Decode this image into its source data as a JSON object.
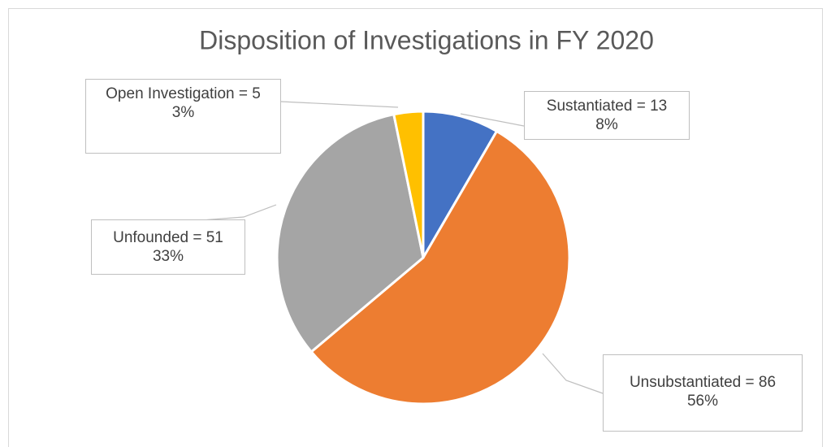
{
  "chart_data": {
    "type": "pie",
    "title": "Disposition of Investigations in FY 2020",
    "categories": [
      "Sustantiated",
      "Unsubstantiated",
      "Unfounded",
      "Open Investigation"
    ],
    "values": [
      13,
      86,
      51,
      5
    ],
    "value_labels": [
      "Sustantiated = 13",
      "Unsubstantiated = 86",
      "Unfounded = 51",
      "Open Investigation = 5"
    ],
    "percentages": [
      8,
      56,
      33,
      3
    ],
    "percentage_labels": [
      "8%",
      "56%",
      "33%",
      "3%"
    ],
    "colors": [
      "#4472c4",
      "#ed7d31",
      "#a5a5a5",
      "#ffc000"
    ]
  }
}
